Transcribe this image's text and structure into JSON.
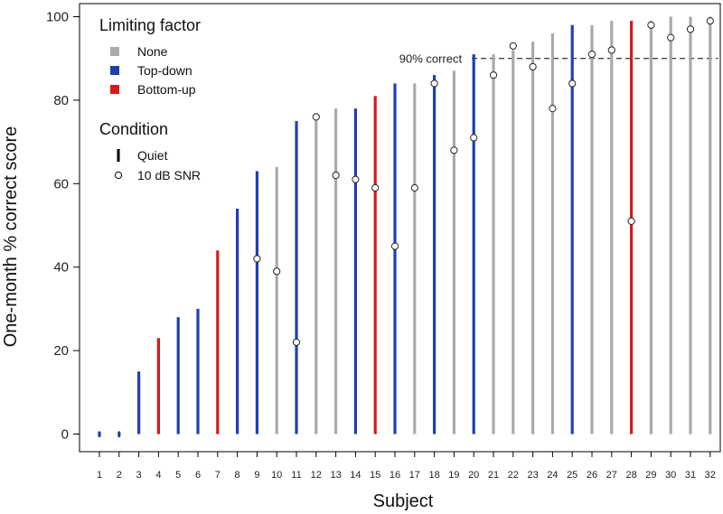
{
  "chart_data": {
    "type": "bar",
    "title": "",
    "xlabel": "Subject",
    "ylabel": "One-month % correct score",
    "ylim": [
      0,
      100
    ],
    "yticks": [
      0,
      20,
      40,
      60,
      80,
      100
    ],
    "categories": [
      "1",
      "2",
      "3",
      "4",
      "5",
      "6",
      "7",
      "8",
      "9",
      "10",
      "11",
      "12",
      "13",
      "14",
      "15",
      "16",
      "17",
      "18",
      "19",
      "20",
      "21",
      "22",
      "23",
      "24",
      "25",
      "26",
      "27",
      "28",
      "29",
      "30",
      "31",
      "32"
    ],
    "quiet_scores": [
      0,
      0,
      15,
      23,
      28,
      30,
      44,
      54,
      63,
      64,
      75,
      76,
      78,
      78,
      81,
      84,
      84,
      86,
      87,
      91,
      91,
      92,
      94,
      96,
      98,
      98,
      99,
      99,
      99,
      100,
      100,
      100
    ],
    "snr_scores": [
      null,
      null,
      null,
      null,
      null,
      null,
      null,
      null,
      42,
      39,
      22,
      76,
      62,
      61,
      59,
      45,
      59,
      84,
      68,
      71,
      86,
      93,
      88,
      78,
      84,
      91,
      92,
      51,
      98,
      95,
      97,
      99
    ],
    "limiting_factor": [
      "Top-down",
      "Top-down",
      "Top-down",
      "Bottom-up",
      "Top-down",
      "Top-down",
      "Bottom-up",
      "Top-down",
      "Top-down",
      "None",
      "Top-down",
      "None",
      "None",
      "Top-down",
      "Bottom-up",
      "Top-down",
      "None",
      "Top-down",
      "None",
      "Top-down",
      "None",
      "None",
      "None",
      "None",
      "Top-down",
      "None",
      "None",
      "Bottom-up",
      "None",
      "None",
      "None",
      "None"
    ],
    "reference_line": {
      "value": 90,
      "label": "90% correct"
    },
    "legend": {
      "limiting_title": "Limiting factor",
      "limiting_items": [
        {
          "name": "None",
          "color": "#aaaaaa"
        },
        {
          "name": "Top-down",
          "color": "#1f3fb0"
        },
        {
          "name": "Bottom-up",
          "color": "#d61a1a"
        }
      ],
      "condition_title": "Condition",
      "condition_items": [
        "Quiet",
        "10 dB SNR"
      ],
      "placement": "top-left"
    }
  }
}
